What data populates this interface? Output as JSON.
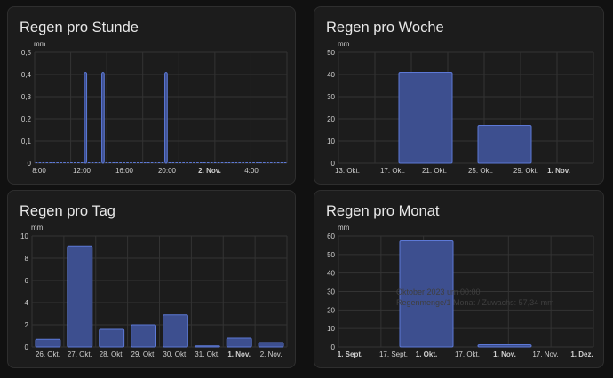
{
  "colors": {
    "bar_fill": "#3d4f8f",
    "bar_stroke": "#5d79d6",
    "grid": "#333333",
    "text": "#d0d0d0",
    "card": "#1c1c1c",
    "background": "#111111"
  },
  "tooltip": {
    "line1": "Oktober 2023 um 00:00",
    "line2": "Regenmenge/1 Monat / Zuwachs: 57,34 mm"
  },
  "chart_data": [
    {
      "type": "bar",
      "title": "Regen pro Stunde",
      "ylabel": "mm",
      "ylim": [
        0,
        0.5
      ],
      "yticks": [
        "0",
        "0,1",
        "0,2",
        "0,3",
        "0,4",
        "0,5"
      ],
      "x_tick_labels": [
        {
          "text": "8:00",
          "bold": false
        },
        {
          "text": "12:00",
          "bold": false
        },
        {
          "text": "16:00",
          "bold": false
        },
        {
          "text": "20:00",
          "bold": false
        },
        {
          "text": "2. Nov.",
          "bold": true
        },
        {
          "text": "4:00",
          "bold": false
        }
      ],
      "hours_start": "1. Nov. 7:00",
      "values": [
        0,
        0,
        0,
        0,
        0,
        0,
        0,
        0,
        0,
        0,
        0,
        0,
        0,
        0,
        0.41,
        0,
        0,
        0,
        0,
        0.41,
        0,
        0,
        0,
        0,
        0,
        0,
        0,
        0,
        0,
        0,
        0,
        0,
        0,
        0,
        0,
        0,
        0,
        0.41,
        0,
        0,
        0,
        0,
        0,
        0,
        0,
        0,
        0,
        0,
        0,
        0,
        0,
        0,
        0,
        0,
        0,
        0,
        0,
        0,
        0,
        0,
        0,
        0,
        0,
        0,
        0,
        0,
        0,
        0,
        0,
        0,
        0,
        0
      ],
      "grid": true,
      "legend": "none"
    },
    {
      "type": "bar",
      "title": "Regen pro Woche",
      "ylabel": "mm",
      "ylim": [
        0,
        50
      ],
      "yticks": [
        "0",
        "10",
        "20",
        "30",
        "40",
        "50"
      ],
      "x_tick_labels": [
        {
          "text": "13. Okt.",
          "bold": false
        },
        {
          "text": "17. Okt.",
          "bold": false
        },
        {
          "text": "21. Okt.",
          "bold": false
        },
        {
          "text": "25. Okt.",
          "bold": false
        },
        {
          "text": "29. Okt.",
          "bold": false
        },
        {
          "text": "1. Nov.",
          "bold": true
        }
      ],
      "bars": [
        {
          "start": "16. Okt.",
          "end": "23. Okt.",
          "value": 41
        },
        {
          "start": "23. Okt.",
          "end": "30. Okt.",
          "value": 17
        }
      ],
      "grid": true,
      "legend": "none"
    },
    {
      "type": "bar",
      "title": "Regen pro Tag",
      "ylabel": "mm",
      "ylim": [
        0,
        10
      ],
      "yticks": [
        "0",
        "2",
        "4",
        "6",
        "8",
        "10"
      ],
      "categories": [
        {
          "text": "26. Okt.",
          "bold": false
        },
        {
          "text": "27. Okt.",
          "bold": false
        },
        {
          "text": "28. Okt.",
          "bold": false
        },
        {
          "text": "29. Okt.",
          "bold": false
        },
        {
          "text": "30. Okt.",
          "bold": false
        },
        {
          "text": "31. Okt.",
          "bold": false
        },
        {
          "text": "1. Nov.",
          "bold": true
        },
        {
          "text": "2. Nov.",
          "bold": false
        }
      ],
      "values": [
        0.7,
        9.1,
        1.6,
        2.0,
        2.9,
        0.1,
        0.8,
        0.4
      ],
      "grid": true,
      "legend": "none"
    },
    {
      "type": "bar",
      "title": "Regen pro Monat",
      "ylabel": "mm",
      "ylim": [
        0,
        60
      ],
      "yticks": [
        "0",
        "10",
        "20",
        "30",
        "40",
        "50",
        "60"
      ],
      "x_tick_labels": [
        {
          "text": "1. Sept.",
          "bold": true
        },
        {
          "text": "17. Sept.",
          "bold": false
        },
        {
          "text": "1. Okt.",
          "bold": true
        },
        {
          "text": "17. Okt.",
          "bold": false
        },
        {
          "text": "1. Nov.",
          "bold": true
        },
        {
          "text": "17. Nov.",
          "bold": false
        },
        {
          "text": "1. Dez.",
          "bold": true
        }
      ],
      "bars": [
        {
          "month": "Oktober 2023",
          "value": 57.34
        },
        {
          "month": "November 2023",
          "value": 1.2
        }
      ],
      "grid": true,
      "legend": "none"
    }
  ]
}
